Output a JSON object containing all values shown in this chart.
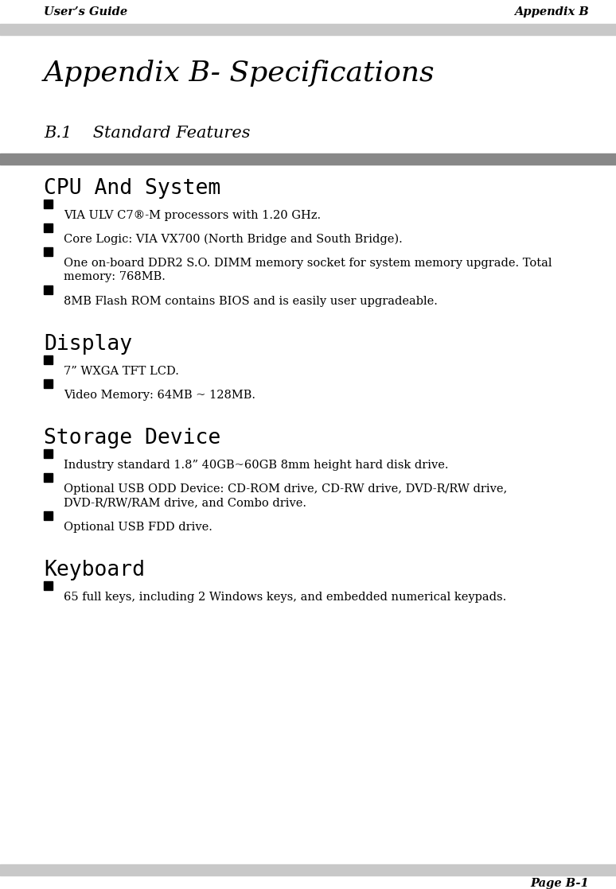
{
  "header_left": "User’s Guide",
  "header_right": "Appendix B",
  "footer_text": "Page B-1",
  "main_title": "Appendix B- Specifications",
  "section_title": "B.1    Standard Features",
  "subsections": [
    {
      "heading": "CPU And System",
      "bullets": [
        "VIA ULV C7®-M processors with 1.20 GHz.",
        "Core Logic: VIA VX700 (North Bridge and South Bridge).",
        "One on-board DDR2 S.O. DIMM memory socket for system memory upgrade. Total\nmemory: 768MB.",
        "8MB Flash ROM contains BIOS and is easily user upgradeable."
      ]
    },
    {
      "heading": "Display",
      "bullets": [
        "7” WXGA TFT LCD.",
        "Video Memory: 64MB ~ 128MB."
      ]
    },
    {
      "heading": "Storage Device",
      "bullets": [
        "Industry standard 1.8” 40GB~60GB 8mm height hard disk drive.",
        "Optional USB ODD Device: CD-ROM drive, CD-RW drive, DVD-R/RW drive,\nDVD-R/RW/RAM drive, and Combo drive.",
        "Optional USB FDD drive."
      ]
    },
    {
      "heading": "Keyboard",
      "bullets": [
        "65 full keys, including 2 Windows keys, and embedded numerical keypads."
      ]
    }
  ],
  "bg_color": "#ffffff",
  "header_bar_color": "#c8c8c8",
  "section_bar_color": "#888888",
  "text_color": "#000000",
  "header_fontsize": 10.5,
  "main_title_fontsize": 26,
  "section_title_fontsize": 15,
  "subsection_heading_fontsize": 19,
  "bullet_fontsize": 10.5
}
